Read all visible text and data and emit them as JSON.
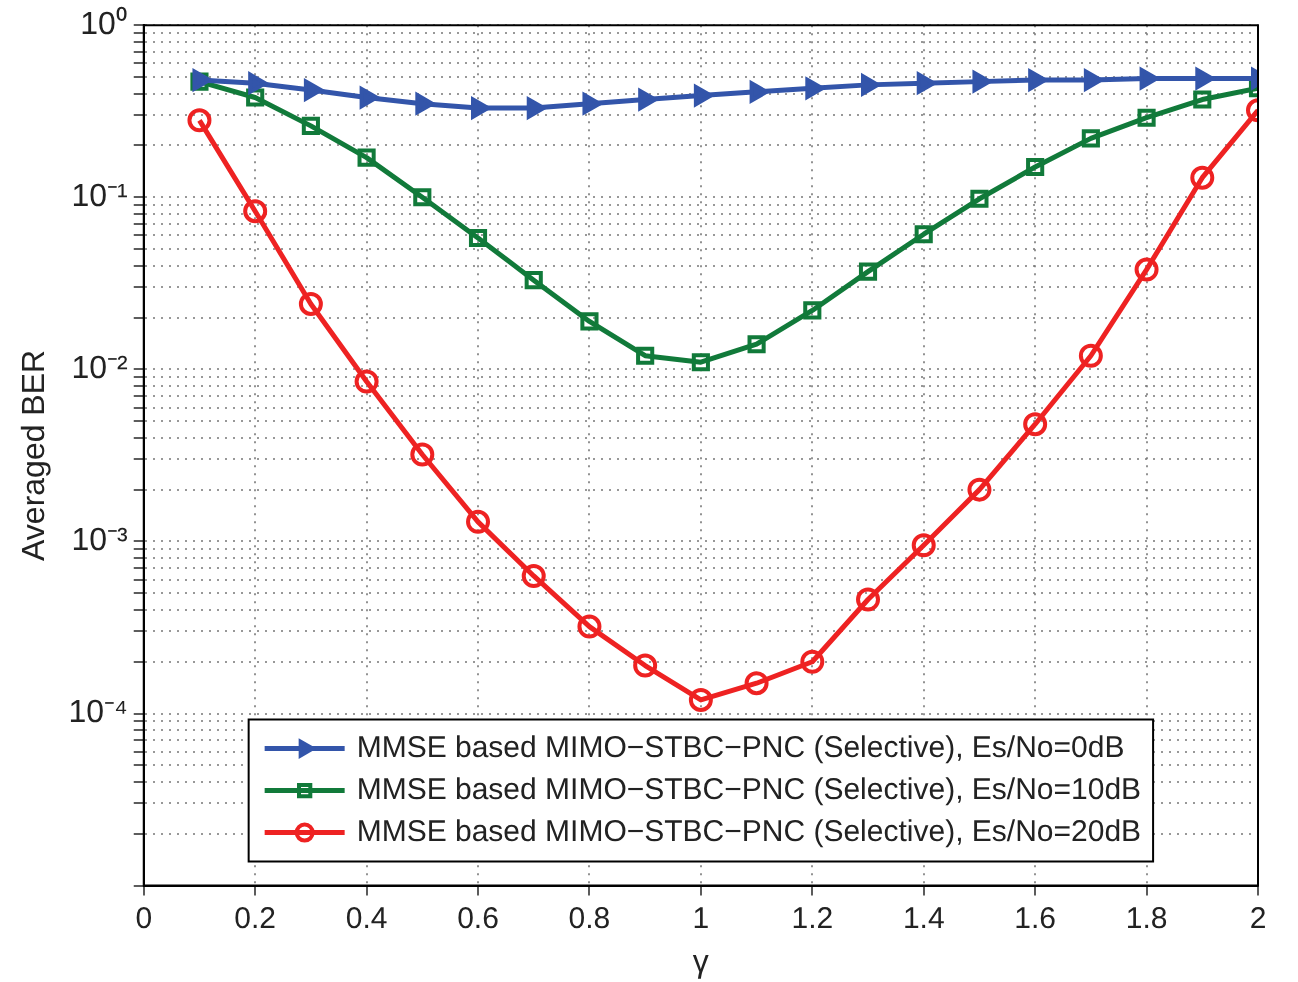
{
  "chart_data": {
    "type": "line",
    "xlabel": "γ",
    "ylabel": "Averaged BER",
    "x": [
      0.1,
      0.2,
      0.3,
      0.4,
      0.5,
      0.6,
      0.7,
      0.8,
      0.9,
      1.0,
      1.1,
      1.2,
      1.3,
      1.4,
      1.5,
      1.6,
      1.7,
      1.8,
      1.9,
      2.0
    ],
    "series": [
      {
        "name": "MMSE based MIMO−STBC−PNC (Selective), Es/No=0dB",
        "color": "#3355aa",
        "marker": "triangle",
        "values": [
          0.48,
          0.46,
          0.42,
          0.38,
          0.35,
          0.33,
          0.33,
          0.35,
          0.37,
          0.39,
          0.41,
          0.43,
          0.45,
          0.46,
          0.47,
          0.48,
          0.48,
          0.49,
          0.49,
          0.49
        ]
      },
      {
        "name": "MMSE based MIMO−STBC−PNC (Selective), Es/No=10dB",
        "color": "#117a3a",
        "marker": "square",
        "values": [
          0.47,
          0.38,
          0.26,
          0.17,
          0.1,
          0.058,
          0.033,
          0.019,
          0.012,
          0.011,
          0.014,
          0.022,
          0.037,
          0.061,
          0.098,
          0.15,
          0.22,
          0.29,
          0.37,
          0.43
        ]
      },
      {
        "name": "MMSE based MIMO−STBC−PNC (Selective), Es/No=20dB",
        "color": "#ee2222",
        "marker": "circle",
        "values": [
          0.28,
          0.083,
          0.024,
          0.0085,
          0.0032,
          0.0013,
          0.00063,
          0.00032,
          0.00019,
          0.00012,
          0.00015,
          0.0002,
          0.00046,
          0.00095,
          0.002,
          0.0048,
          0.012,
          0.038,
          0.13,
          0.32
        ]
      }
    ],
    "log": "y",
    "grid": true,
    "legend": "bottom",
    "line_style": "solid",
    "xlim": [
      0,
      2
    ],
    "xticks": [
      0,
      0.2,
      0.4,
      0.6,
      0.8,
      1,
      1.2,
      1.4,
      1.6,
      1.8,
      2
    ],
    "ylim": [
      1e-05,
      1
    ],
    "yticks": [
      {
        "value": 1e-05,
        "label": null
      },
      {
        "value": 2e-05,
        "label": null
      },
      {
        "value": 3e-05,
        "label": null
      },
      {
        "value": 4e-05,
        "label": null
      },
      {
        "value": 5e-05,
        "label": null
      },
      {
        "value": 6e-05,
        "label": null
      },
      {
        "value": 7e-05,
        "label": null
      },
      {
        "value": 8e-05,
        "label": null
      },
      {
        "value": 9e-05,
        "label": null
      },
      {
        "value": 0.0001,
        "label": "10⁻⁴"
      },
      {
        "value": 0.0002,
        "label": null
      },
      {
        "value": 0.0003,
        "label": null
      },
      {
        "value": 0.0004,
        "label": null
      },
      {
        "value": 0.0005,
        "label": null
      },
      {
        "value": 0.0006,
        "label": null
      },
      {
        "value": 0.0007,
        "label": null
      },
      {
        "value": 0.0008,
        "label": null
      },
      {
        "value": 0.0009,
        "label": null
      },
      {
        "value": 0.001,
        "label": "10⁻³"
      },
      {
        "value": 0.002,
        "label": null
      },
      {
        "value": 0.003,
        "label": null
      },
      {
        "value": 0.004,
        "label": null
      },
      {
        "value": 0.005,
        "label": null
      },
      {
        "value": 0.006,
        "label": null
      },
      {
        "value": 0.007,
        "label": null
      },
      {
        "value": 0.008,
        "label": null
      },
      {
        "value": 0.009,
        "label": null
      },
      {
        "value": 0.01,
        "label": "10⁻²"
      },
      {
        "value": 0.02,
        "label": null
      },
      {
        "value": 0.03,
        "label": null
      },
      {
        "value": 0.04,
        "label": null
      },
      {
        "value": 0.05,
        "label": null
      },
      {
        "value": 0.06,
        "label": null
      },
      {
        "value": 0.07,
        "label": null
      },
      {
        "value": 0.08,
        "label": null
      },
      {
        "value": 0.09,
        "label": null
      },
      {
        "value": 0.1,
        "label": "10⁻¹"
      },
      {
        "value": 0.2,
        "label": null
      },
      {
        "value": 0.3,
        "label": null
      },
      {
        "value": 0.4,
        "label": null
      },
      {
        "value": 0.5,
        "label": null
      },
      {
        "value": 0.6,
        "label": null
      },
      {
        "value": 0.7,
        "label": null
      },
      {
        "value": 0.8,
        "label": null
      },
      {
        "value": 0.9,
        "label": null
      },
      {
        "value": 1,
        "label": "10⁰"
      }
    ]
  }
}
